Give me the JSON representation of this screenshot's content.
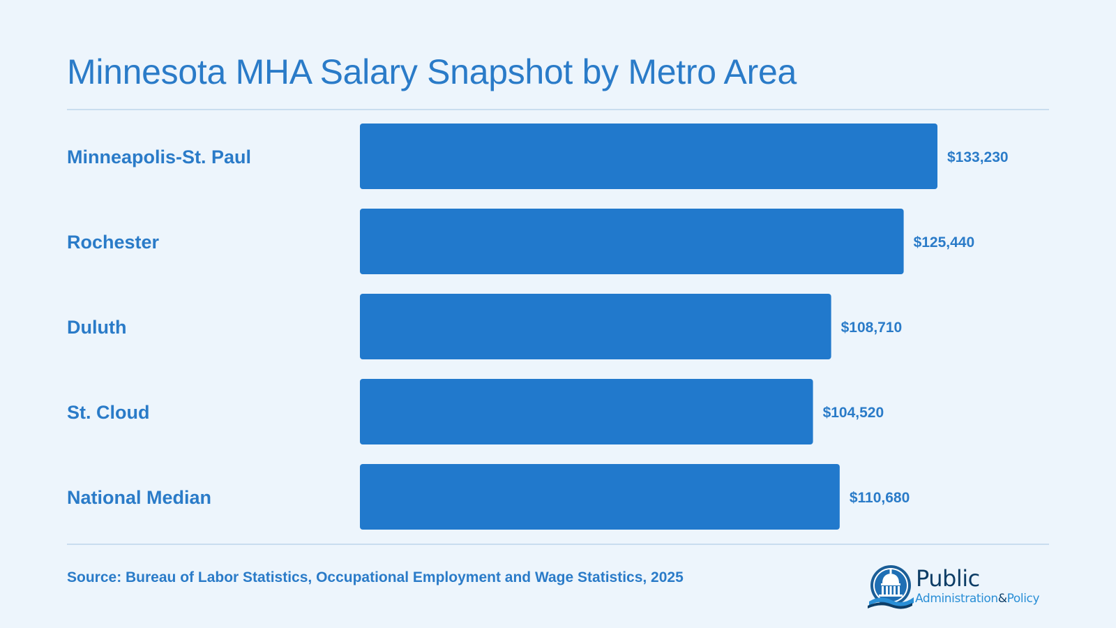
{
  "page": {
    "title": "Minnesota MHA Salary Snapshot by Metro Area",
    "source": "Source: Bureau of Labor Statistics, Occupational Employment and Wage Statistics, 2025"
  },
  "logo": {
    "word1": "Public",
    "word2a": "Administration",
    "amp": "&",
    "word2b": "Policy",
    "icon": "capitol-dome-icon"
  },
  "colors": {
    "background": "#edf5fc",
    "bar": "#2179cc",
    "text": "#2a7bc8",
    "rule": "#c9ddef"
  },
  "chart_data": {
    "type": "bar",
    "orientation": "horizontal",
    "categories": [
      "Minneapolis-St. Paul",
      "Rochester",
      "Duluth",
      "St. Cloud",
      "National Median"
    ],
    "values": [
      133230,
      125440,
      108710,
      104520,
      110680
    ],
    "value_labels": [
      "$133,230",
      "$125,440",
      "$108,710",
      "$104,520",
      "$110,680"
    ],
    "title": "Minnesota MHA Salary Snapshot by Metro Area",
    "xlabel": "",
    "ylabel": "",
    "grid": false,
    "legend": "none"
  }
}
